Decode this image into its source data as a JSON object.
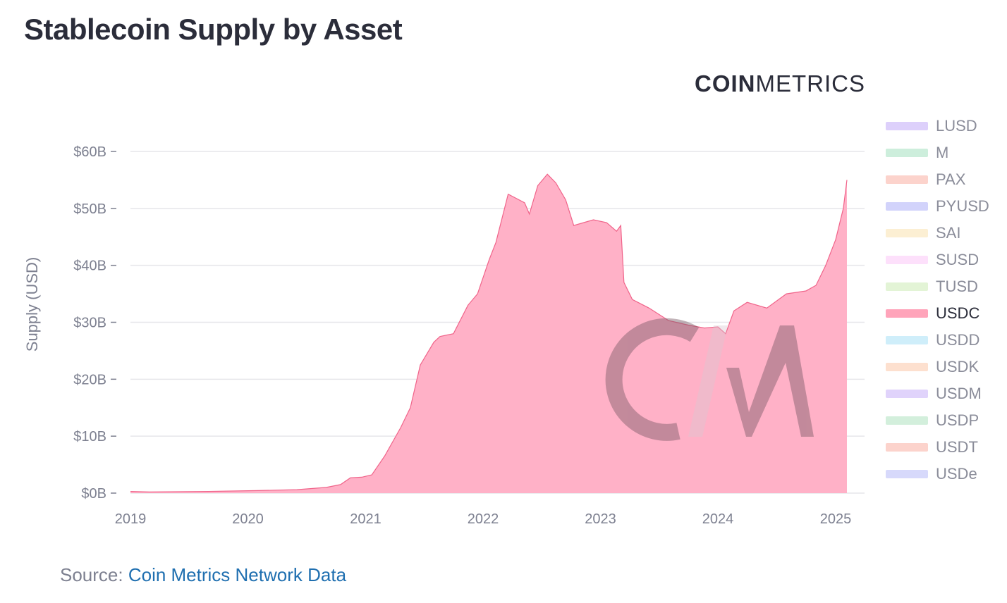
{
  "title": "Stablecoin Supply by Asset",
  "brand": {
    "bold": "COIN",
    "light": "METRICS"
  },
  "source": {
    "prefix": "Source: ",
    "link_text": "Coin Metrics Network Data"
  },
  "colors": {
    "usdc_fill": "#ffb1c7",
    "usdc_line": "#f0648a",
    "grid": "#e6e6ea",
    "watermark": "#7a5a66"
  },
  "chart_data": {
    "type": "area",
    "title": "Stablecoin Supply by Asset",
    "ylabel": "Supply (USD)",
    "xlabel": "",
    "ylim": [
      0,
      60
    ],
    "y_unit": "billions USD",
    "y_ticks": [
      {
        "value": 0,
        "label": "$0B"
      },
      {
        "value": 10,
        "label": "$10B"
      },
      {
        "value": 20,
        "label": "$20B"
      },
      {
        "value": 30,
        "label": "$30B"
      },
      {
        "value": 40,
        "label": "$40B"
      },
      {
        "value": 50,
        "label": "$50B"
      },
      {
        "value": 60,
        "label": "$60B"
      }
    ],
    "x_ticks": [
      "2019",
      "2020",
      "2021",
      "2022",
      "2023",
      "2024",
      "2025"
    ],
    "grid": true,
    "legend_position": "right",
    "legend": [
      {
        "name": "LUSD",
        "color": "#ddd0fb",
        "active": false
      },
      {
        "name": "M",
        "color": "#cdeedc",
        "active": false
      },
      {
        "name": "PAX",
        "color": "#fcd3cc",
        "active": false
      },
      {
        "name": "PYUSD",
        "color": "#d2d3fb",
        "active": false
      },
      {
        "name": "SAI",
        "color": "#fcefd3",
        "active": false
      },
      {
        "name": "SUSD",
        "color": "#fde0fb",
        "active": false
      },
      {
        "name": "TUSD",
        "color": "#e3f4d6",
        "active": false
      },
      {
        "name": "USDC",
        "color": "#ffa4ba",
        "active": true
      },
      {
        "name": "USDD",
        "color": "#cfeefa",
        "active": false
      },
      {
        "name": "USDK",
        "color": "#fde0cf",
        "active": false
      },
      {
        "name": "USDM",
        "color": "#e0d3fb",
        "active": false
      },
      {
        "name": "USDP",
        "color": "#d3efdc",
        "active": false
      },
      {
        "name": "USDT",
        "color": "#fcd3cc",
        "active": false
      },
      {
        "name": "USDe",
        "color": "#d7d9fb",
        "active": false
      }
    ],
    "series": [
      {
        "name": "USDC",
        "x": [
          "2018-10-01",
          "2019-03-01",
          "2019-09-01",
          "2020-02-01",
          "2020-06-01",
          "2020-09-01",
          "2020-10-15",
          "2020-11-15",
          "2020-12-20",
          "2021-01-20",
          "2021-03-01",
          "2021-04-20",
          "2021-05-20",
          "2021-06-20",
          "2021-08-01",
          "2021-08-20",
          "2021-10-01",
          "2021-11-15",
          "2021-12-15",
          "2022-01-20",
          "2022-02-10",
          "2022-03-20",
          "2022-05-10",
          "2022-05-25",
          "2022-06-20",
          "2022-07-20",
          "2022-08-15",
          "2022-09-15",
          "2022-10-10",
          "2022-11-10",
          "2022-12-10",
          "2023-01-20",
          "2023-02-20",
          "2023-03-05",
          "2023-03-15",
          "2023-04-10",
          "2023-06-01",
          "2023-08-01",
          "2023-10-01",
          "2023-11-20",
          "2024-01-01",
          "2024-01-25",
          "2024-02-20",
          "2024-04-01",
          "2024-06-01",
          "2024-08-01",
          "2024-10-01",
          "2024-11-01",
          "2024-12-01",
          "2025-01-01",
          "2025-01-25",
          "2025-02-05"
        ],
        "values": [
          0.3,
          0.2,
          0.3,
          0.45,
          0.6,
          1.0,
          1.5,
          2.7,
          2.8,
          3.2,
          6.5,
          11.5,
          15,
          22.5,
          26.5,
          27.5,
          28,
          33,
          35,
          41,
          44,
          52.5,
          51,
          49,
          54,
          56,
          54.5,
          51.5,
          47,
          47.5,
          48,
          47.5,
          46,
          47,
          37,
          34,
          32.5,
          30.3,
          29.5,
          29,
          29.2,
          28,
          32,
          33.5,
          32.5,
          35,
          35.5,
          36.5,
          40,
          44.5,
          50,
          55
        ]
      }
    ]
  }
}
